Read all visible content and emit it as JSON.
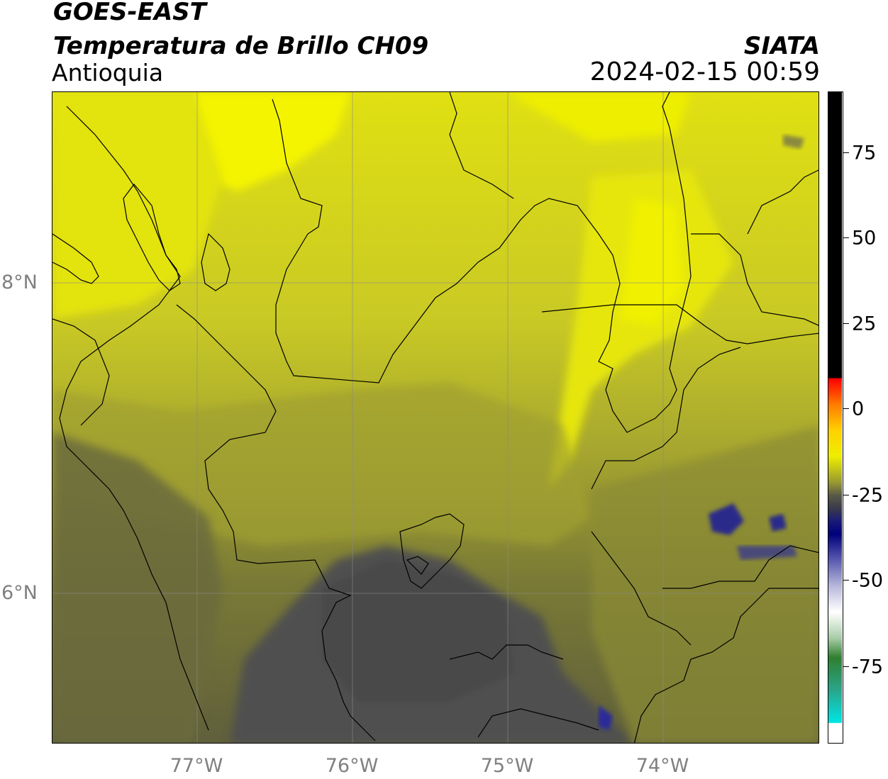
{
  "header": {
    "satellite": "GOES-EAST",
    "product": "Temperatura de Brillo CH09",
    "region": "Antioquia",
    "brand": "SIATA",
    "datetime": "2024-02-15 00:59"
  },
  "map": {
    "lat_labels": [
      "8°N",
      "6°N"
    ],
    "lon_labels": [
      "77°W",
      "76°W",
      "75°W",
      "74°W"
    ]
  },
  "colorbar": {
    "ticks": [
      "75",
      "50",
      "25",
      "0",
      "-25",
      "-50",
      "-75"
    ],
    "colors": {
      "black": "#000000",
      "red": "#ff0000",
      "orange": "#ff8c00",
      "yellow": "#ffff00",
      "olive": "#8a8a2a",
      "dark_gray": "#4a4a4a",
      "navy": "#00007a",
      "white": "#ffffff",
      "green": "#2f7f2f",
      "cyan": "#00e5e5"
    }
  }
}
